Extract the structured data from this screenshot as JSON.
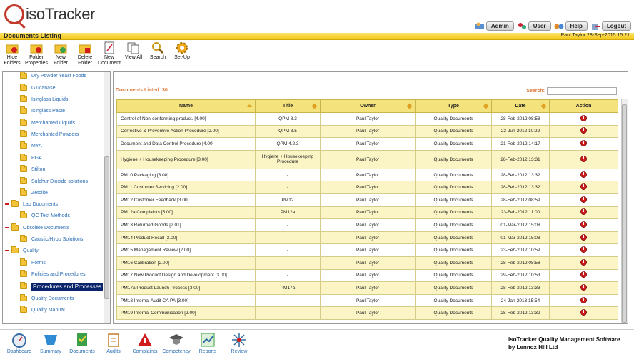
{
  "app": {
    "logo_text": "isoTracker"
  },
  "top_buttons": [
    {
      "label": "Admin",
      "icon": "admin-icon"
    },
    {
      "label": "User",
      "icon": "user-icon"
    },
    {
      "label": "Help",
      "icon": "help-icon"
    },
    {
      "label": "Logout",
      "icon": "logout-icon"
    }
  ],
  "title_bar": {
    "title": "Documents Listing",
    "user": "Paul Taylor",
    "date": "28-Sep-2015",
    "time": "15:21"
  },
  "toolbar": [
    {
      "label": "Hide Folders",
      "icon": "hide-folders-icon"
    },
    {
      "label": "Folder Properties",
      "icon": "folder-properties-icon"
    },
    {
      "label": "New Folder",
      "icon": "new-folder-icon"
    },
    {
      "label": "Delete Folder",
      "icon": "delete-folder-icon"
    },
    {
      "label": "New Document",
      "icon": "new-document-icon"
    },
    {
      "label": "View All",
      "icon": "view-all-icon"
    },
    {
      "label": "Search",
      "icon": "search-icon"
    },
    {
      "label": "Set-Up",
      "icon": "setup-gear-icon"
    }
  ],
  "sidebar": {
    "items": [
      {
        "label": "Dry Powder Yeast Foods"
      },
      {
        "label": "Glucanase"
      },
      {
        "label": "Isinglass Liquids"
      },
      {
        "label": "Isinglass Paste"
      },
      {
        "label": "Merchanted Liquids"
      },
      {
        "label": "Merchanted Powders"
      },
      {
        "label": "MYA"
      },
      {
        "label": "PGA"
      },
      {
        "label": "Stilton"
      },
      {
        "label": "Sulphur Dioxide solutions"
      },
      {
        "label": "Zetolite"
      },
      {
        "label": "Lab Documents"
      },
      {
        "label": "QC Test Methods"
      },
      {
        "label": "Obsolete Documents"
      },
      {
        "label": "Caustic/Hypo Solutions"
      },
      {
        "label": "Quality"
      },
      {
        "label": "Forms"
      },
      {
        "label": "Policies and Procedures"
      },
      {
        "label": "Procedures and Processes"
      },
      {
        "label": "Quality Documents"
      },
      {
        "label": "Quality Manual"
      }
    ]
  },
  "main": {
    "listed_label": "Documents Listed: 30",
    "search_label": "Search:",
    "search_value": "",
    "columns": [
      "Name",
      "Title",
      "Owner",
      "Type",
      "Date",
      "Action"
    ],
    "rows": [
      [
        "Control of Non-conforming product. [4.00]",
        "QPM 8.3",
        "Paul Taylor",
        "Quality Documents",
        "28-Feb-2012 08:58"
      ],
      [
        "Corrective & Preventive Action Procedure [2.00]",
        "QPM 8.5",
        "Paul Taylor",
        "Quality Documents",
        "22-Jun-2012 10:22"
      ],
      [
        "Document and Data Control Procedure [4.00]",
        "QPM 4.2.3",
        "Paul Taylor",
        "Quality Documents",
        "21-Feb-2012 14:17"
      ],
      [
        "Hygiene + Housekeeping Procedure [3.00]",
        "Hygiene + Housekeeping Procedure",
        "Paul Taylor",
        "Quality Documents",
        "28-Feb-2012 13:31"
      ],
      [
        "PM10 Packaging [3.00]",
        "-",
        "Paul Taylor",
        "Quality Documents",
        "28-Feb-2012 13:32"
      ],
      [
        "PM11 Customer Servicing [2.00]",
        "-",
        "Paul Taylor",
        "Quality Documents",
        "28-Feb-2012 13:32"
      ],
      [
        "PM12 Customer Feedback [3.00]",
        "PM12",
        "Paul Taylor",
        "Quality Documents",
        "28-Feb-2012 08:59"
      ],
      [
        "PM12a Complaints [5.00]",
        "PM12a",
        "Paul Taylor",
        "Quality Documents",
        "23-Feb-2012 11:00"
      ],
      [
        "PM13 Returned Goods [2.01]",
        "-",
        "Paul Taylor",
        "Quality Documents",
        "01-Mar-2012 15:08"
      ],
      [
        "PM14 Product Recall [3.00]",
        "-",
        "Paul Taylor",
        "Quality Documents",
        "01-Mar-2012 15:08"
      ],
      [
        "PM15 Management Review [2.00]",
        "-",
        "Paul Taylor",
        "Quality Documents",
        "23-Feb-2012 10:59"
      ],
      [
        "PM16 Calibration [2.00]",
        "-",
        "Paul Taylor",
        "Quality Documents",
        "28-Feb-2012 08:58"
      ],
      [
        "PM17 New Product Design and Development [3.00]",
        "-",
        "Paul Taylor",
        "Quality Documents",
        "29-Feb-2012 10:53"
      ],
      [
        "PM17a Product Launch Process [3.00]",
        "PM17a",
        "Paul Taylor",
        "Quality Documents",
        "28-Feb-2012 13:33"
      ],
      [
        "PM18 Internal Audit CA PA [3.00]",
        "-",
        "Paul Taylor",
        "Quality Documents",
        "24-Jan-2013 15:54"
      ],
      [
        "PM19 Internal Communication [2.00]",
        "-",
        "Paul Taylor",
        "Quality Documents",
        "28-Feb-2012 13:32"
      ]
    ]
  },
  "footer": {
    "nav": [
      {
        "label": "Dashboard",
        "icon": "dashboard-icon"
      },
      {
        "label": "Summary",
        "icon": "summary-icon"
      },
      {
        "label": "Documents",
        "icon": "documents-icon"
      },
      {
        "label": "Audits",
        "icon": "audits-icon"
      },
      {
        "label": "Complaints",
        "icon": "complaints-icon"
      },
      {
        "label": "Competency",
        "icon": "competency-icon"
      },
      {
        "label": "Reports",
        "icon": "reports-icon"
      },
      {
        "label": "Review",
        "icon": "review-icon"
      }
    ],
    "brand_line1": "isoTracker Quality Management Software",
    "brand_line2": "by Lennox Hill Ltd"
  },
  "colors": {
    "header_gold": "#f2c618",
    "table_header": "#f4e27c",
    "row_alt": "#fbf4c4",
    "link_blue": "#2a6db3",
    "accent_orange": "#e07a3a",
    "action_red": "#d21c1c"
  }
}
